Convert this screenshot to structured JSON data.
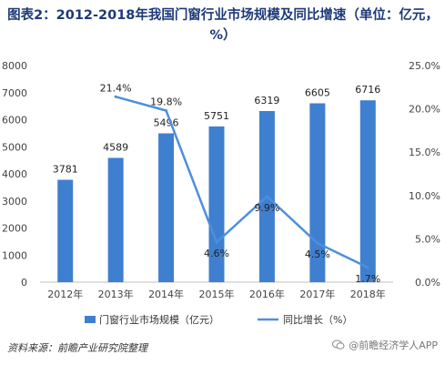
{
  "chart_data": {
    "type": "bar+line",
    "title": "图表2：2012-2018年我国门窗行业市场规模及同比增速（单位：亿元，%）",
    "categories": [
      "2012年",
      "2013年",
      "2014年",
      "2015年",
      "2016年",
      "2017年",
      "2018年"
    ],
    "series": [
      {
        "name": "门窗行业市场规模（亿元）",
        "type": "bar",
        "axis": "left",
        "values": [
          3781,
          4589,
          5496,
          5751,
          6319,
          6605,
          6716
        ],
        "labels": [
          "3781",
          "4589",
          "5496",
          "5751",
          "6319",
          "6605",
          "6716"
        ]
      },
      {
        "name": "同比增长（%）",
        "type": "line",
        "axis": "right",
        "values": [
          null,
          21.4,
          19.8,
          4.6,
          9.9,
          4.5,
          1.7
        ],
        "labels": [
          "",
          "21.4%",
          "19.8%",
          "4.6%",
          "9.9%",
          "4.5%",
          "1.7%"
        ]
      }
    ],
    "y_left": {
      "min": 0,
      "max": 8000,
      "ticks": [
        "0",
        "1000",
        "2000",
        "3000",
        "4000",
        "5000",
        "6000",
        "7000",
        "8000"
      ]
    },
    "y_right": {
      "min": 0,
      "max": 25,
      "ticks": [
        "0.0%",
        "5.0%",
        "10.0%",
        "15.0%",
        "20.0%",
        "25.0%"
      ]
    },
    "grid": false,
    "legend": "bottom",
    "colors": {
      "bar": "#3f7fd0",
      "line": "#4d8fdc",
      "title": "#1e3a78"
    }
  },
  "footer": {
    "source": "资料来源：前瞻产业研究院整理",
    "watermark": "@前瞻经济学人APP"
  }
}
